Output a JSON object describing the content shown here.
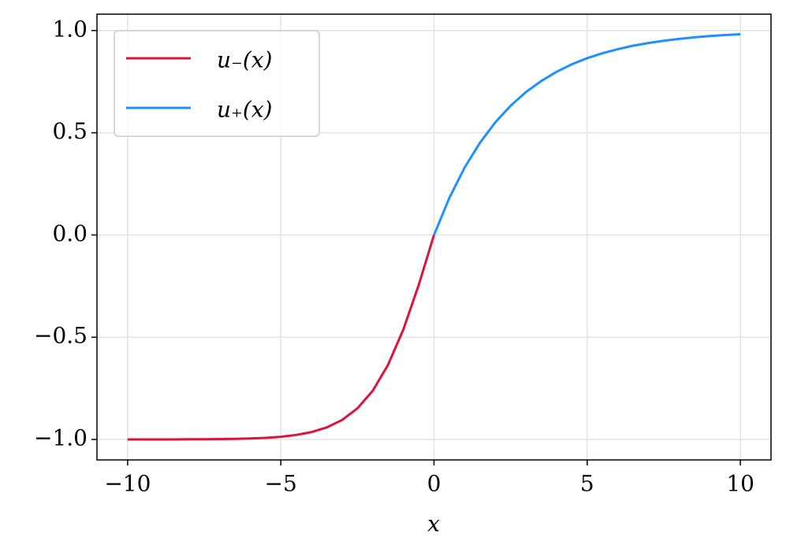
{
  "chart_data": {
    "type": "line",
    "xlabel": "x",
    "xlim": [
      -11,
      11
    ],
    "ylim": [
      -1.1,
      1.08
    ],
    "xticks": [
      {
        "value": -10,
        "label": "−10"
      },
      {
        "value": -5,
        "label": "−5"
      },
      0,
      5,
      10
    ],
    "yticks": [
      {
        "value": -1,
        "label": "−1.0"
      },
      {
        "value": -0.5,
        "label": "−0.5"
      },
      {
        "value": 0,
        "label": "0.0"
      },
      {
        "value": 0.5,
        "label": "0.5"
      },
      {
        "value": 1,
        "label": "1.0"
      }
    ],
    "grid": true,
    "legend": "upper left",
    "series": [
      {
        "name": "u₋(x)",
        "color": "#dc143c",
        "x": [
          -10,
          -9.5,
          -9,
          -8.5,
          -8,
          -7.5,
          -7,
          -6.5,
          -6,
          -5.5,
          -5,
          -4.5,
          -4,
          -3.5,
          -3,
          -2.5,
          -2,
          -1.5,
          -1,
          -0.5,
          0
        ],
        "values": [
          -1,
          -1,
          -1,
          -1,
          -0.999,
          -0.999,
          -0.998,
          -0.997,
          -0.995,
          -0.992,
          -0.987,
          -0.978,
          -0.964,
          -0.941,
          -0.905,
          -0.848,
          -0.762,
          -0.635,
          -0.462,
          -0.245,
          0
        ]
      },
      {
        "name": "u₊(x)",
        "color": "#1e90ff",
        "x": [
          0,
          0.5,
          1,
          1.5,
          2,
          2.5,
          3,
          3.5,
          4,
          4.5,
          5,
          5.5,
          6,
          6.5,
          7,
          7.5,
          8,
          8.5,
          9,
          9.5,
          10
        ],
        "values": [
          0,
          0.181,
          0.33,
          0.451,
          0.551,
          0.632,
          0.699,
          0.753,
          0.798,
          0.835,
          0.865,
          0.889,
          0.909,
          0.926,
          0.939,
          0.95,
          0.959,
          0.967,
          0.973,
          0.978,
          0.982
        ]
      }
    ]
  }
}
